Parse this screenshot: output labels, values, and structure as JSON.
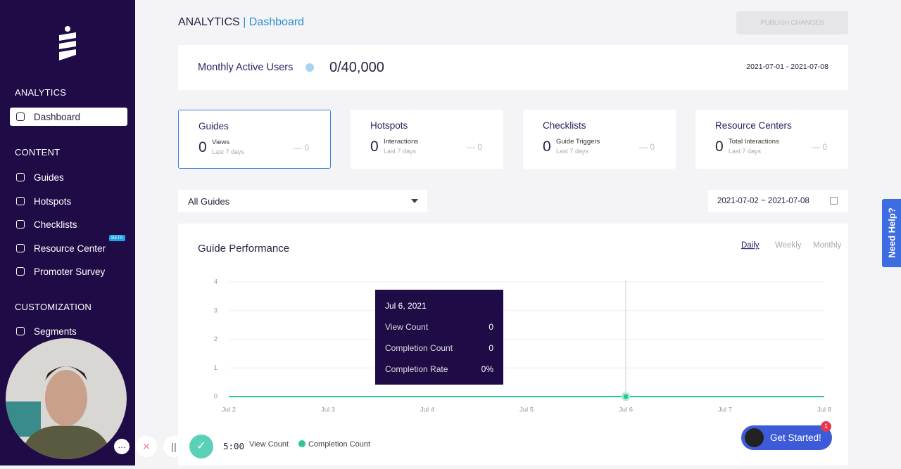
{
  "sidebar": {
    "sections": [
      {
        "title": "ANALYTICS",
        "items": [
          "Dashboard"
        ]
      },
      {
        "title": "CONTENT",
        "items": [
          "Guides",
          "Hotspots",
          "Checklists",
          "Resource Center",
          "Promoter Survey"
        ],
        "badge": "BETA"
      },
      {
        "title": "CUSTOMIZATION",
        "items": [
          "Segments"
        ]
      }
    ]
  },
  "header": {
    "title": "ANALYTICS",
    "subtitle": "| Dashboard",
    "button": "PUBLISH CHANGES"
  },
  "mau": {
    "label": "Monthly Active Users",
    "value": "0/40,000",
    "range": "2021-07-01 - 2021-07-08"
  },
  "cards": [
    {
      "title": "Guides",
      "value": "0",
      "metric": "Views",
      "period": "Last 7 days",
      "change": "— 0"
    },
    {
      "title": "Hotspots",
      "value": "0",
      "metric": "Interactions",
      "period": "Last 7 days",
      "change": "— 0"
    },
    {
      "title": "Checklists",
      "value": "0",
      "metric": "Guide Triggers",
      "period": "Last 7 days",
      "change": "— 0"
    },
    {
      "title": "Resource Centers",
      "value": "0",
      "metric": "Total Interactions",
      "period": "Last 7 days",
      "change": "— 0"
    }
  ],
  "filter": {
    "select": "All Guides",
    "date_range": "2021-07-02 ~ 2021-07-08"
  },
  "chart_data": {
    "type": "line",
    "title": "Guide Performance",
    "periods": [
      "Daily",
      "Weekly",
      "Monthly"
    ],
    "categories": [
      "Jul 2",
      "Jul 3",
      "Jul 4",
      "Jul 5",
      "Jul 6",
      "Jul 7",
      "Jul 8"
    ],
    "series": [
      {
        "name": "View Count",
        "color": "#4c6ef5",
        "values": [
          0,
          0,
          0,
          0,
          0,
          0,
          0
        ]
      },
      {
        "name": "Completion Count",
        "color": "#2bc79a",
        "values": [
          0,
          0,
          0,
          0,
          0,
          0,
          0
        ]
      }
    ],
    "ylim": [
      0,
      4
    ],
    "yticks": [
      0,
      1,
      2,
      3,
      4
    ],
    "grid": true
  },
  "tooltip": {
    "title": "Jul 6, 2021",
    "rows": [
      {
        "label": "View Count",
        "value": "0"
      },
      {
        "label": "Completion Count",
        "value": "0"
      },
      {
        "label": "Completion Rate",
        "value": "0%"
      }
    ]
  },
  "help": "Need Help?",
  "get_started": {
    "label": "Get Started!",
    "badge": "1"
  },
  "recorder": {
    "timer": "5:00"
  }
}
